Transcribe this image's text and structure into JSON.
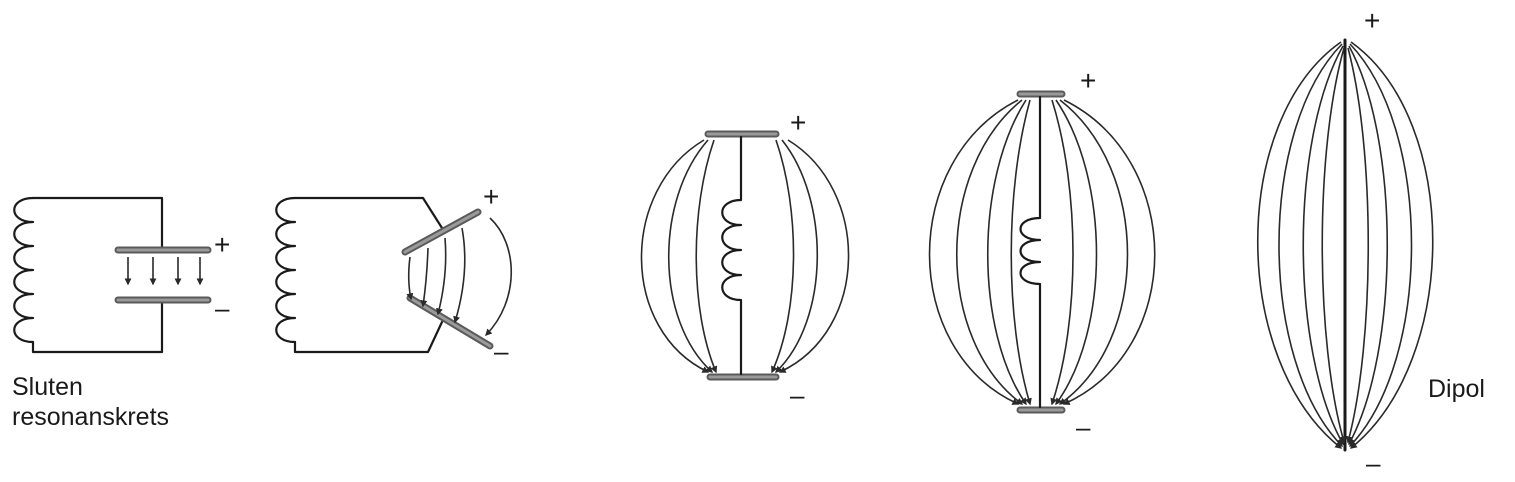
{
  "labels": {
    "closed_circuit": [
      "Sluten",
      "resonanskrets"
    ],
    "dipole": "Dipol",
    "plus": "+",
    "minus": "–"
  },
  "stages": [
    {
      "name": "closed-resonant-circuit"
    },
    {
      "name": "opening-circuit"
    },
    {
      "name": "open-circuit-short-coil"
    },
    {
      "name": "open-circuit-tall"
    },
    {
      "name": "dipole-antenna"
    }
  ],
  "colors": {
    "ink": "#1a1a1a",
    "plate": "#5a5a5a"
  }
}
